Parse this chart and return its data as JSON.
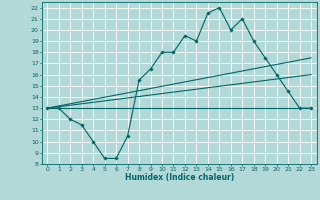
{
  "xlabel": "Humidex (Indice chaleur)",
  "ylabel": "",
  "background_color": "#b2d8d8",
  "grid_color": "#ffffff",
  "line_color": "#006666",
  "xlim": [
    -0.5,
    23.5
  ],
  "ylim": [
    8,
    22.5
  ],
  "xticks": [
    0,
    1,
    2,
    3,
    4,
    5,
    6,
    7,
    8,
    9,
    10,
    11,
    12,
    13,
    14,
    15,
    16,
    17,
    18,
    19,
    20,
    21,
    22,
    23
  ],
  "yticks": [
    8,
    9,
    10,
    11,
    12,
    13,
    14,
    15,
    16,
    17,
    18,
    19,
    20,
    21,
    22
  ],
  "series": [
    {
      "x": [
        0,
        1,
        2,
        3,
        4,
        5,
        6,
        7,
        8,
        9,
        10,
        11,
        12,
        13,
        14,
        15,
        16,
        17,
        18,
        19,
        20,
        21,
        22,
        23
      ],
      "y": [
        13,
        13,
        12,
        11.5,
        10,
        8.5,
        8.5,
        10.5,
        15.5,
        16.5,
        18,
        18,
        19.5,
        19,
        21.5,
        22,
        20,
        21,
        19,
        17.5,
        16,
        14.5,
        13,
        13
      ],
      "marker": true
    },
    {
      "x": [
        0,
        23
      ],
      "y": [
        13,
        17.5
      ],
      "marker": false
    },
    {
      "x": [
        0,
        23
      ],
      "y": [
        13,
        16
      ],
      "marker": false
    },
    {
      "x": [
        0,
        23
      ],
      "y": [
        13,
        13
      ],
      "marker": false
    }
  ]
}
